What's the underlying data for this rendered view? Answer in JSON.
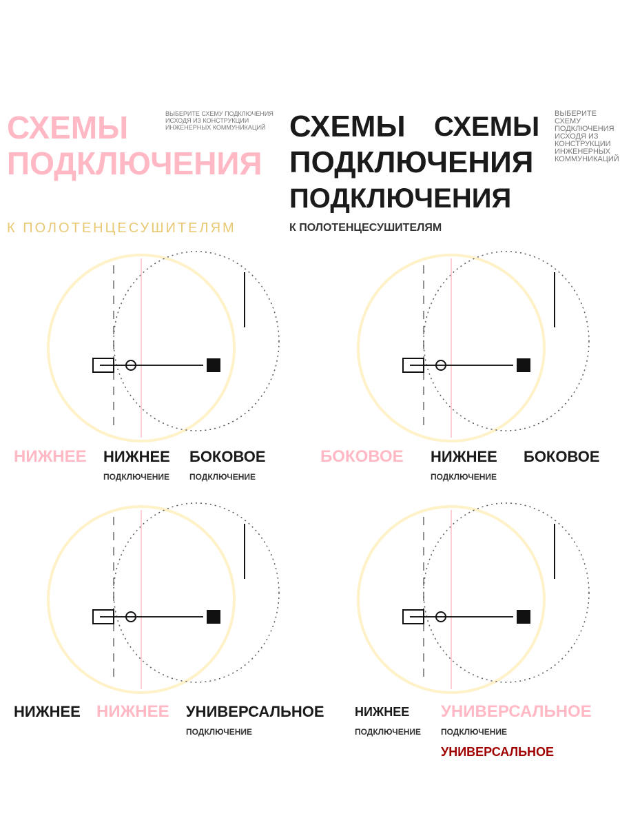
{
  "header": {
    "title_line1": "СХЕМЫ",
    "title_line2": "ПОДКЛЮЧЕНИЯ",
    "subtitle": "К ПОЛОТЕНЦЕСУШИТЕЛЯМ",
    "note": "ВЫБЕРИТЕ СХЕМУ ПОДКЛЮЧЕНИЯ ИСХОДЯ ИЗ КОНСТРУКЦИИ ИНЖЕНЕРНЫХ КОММУНИКАЦИЙ"
  },
  "schemes": [
    {
      "label": "НИЖНЕЕ",
      "desc": "ПОДКЛЮЧЕНИЕ"
    },
    {
      "label": "БОКОВОЕ",
      "desc": "ПОДКЛЮЧЕНИЕ"
    },
    {
      "label": "НИЖНЕЕ",
      "desc": "ПОДКЛЮЧЕНИЕ"
    },
    {
      "label": "УНИВЕРСАЛЬНОЕ",
      "desc": "ПОДКЛЮЧЕНИЕ"
    }
  ],
  "colors": {
    "accent_pink": "#ffcfd6",
    "accent_yellow": "#fff1c8",
    "accent_red": "#a00000",
    "ink": "#1a1a1a"
  }
}
